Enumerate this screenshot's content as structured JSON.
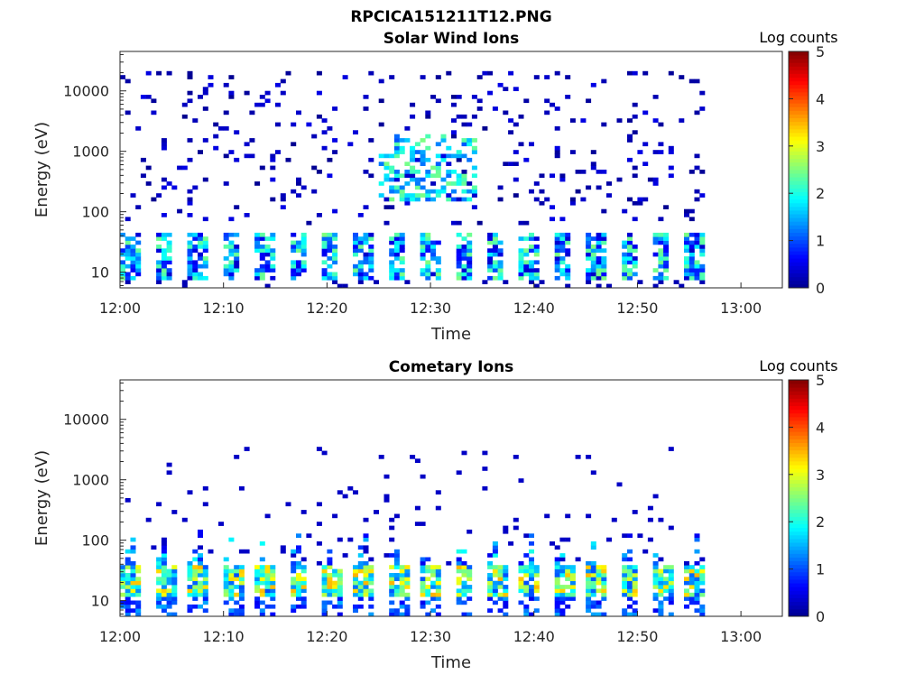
{
  "figure_title": "RPCICA151211T12.PNG",
  "colors": {
    "colormap": [
      "#00008f",
      "#0000ff",
      "#007fff",
      "#00ffff",
      "#7fff7f",
      "#ffff00",
      "#ff7f00",
      "#ff0000",
      "#7f0000"
    ]
  },
  "chart_data": [
    {
      "type": "heatmap",
      "title": "Solar Wind Ions",
      "xlabel": "Time",
      "ylabel": "Energy (eV)",
      "x_ticks": [
        "12:00",
        "12:10",
        "12:20",
        "12:30",
        "12:40",
        "12:50",
        "13:00"
      ],
      "x_range_minutes": [
        0,
        64
      ],
      "data_extent_minutes": [
        0,
        56.5
      ],
      "y_scale": "log",
      "y_ticks": [
        "10",
        "100",
        "1000",
        "10000"
      ],
      "y_range_eV": [
        5.5,
        45000
      ],
      "colorbar": {
        "label": "Log counts",
        "ticks": [
          "0",
          "1",
          "2",
          "3",
          "4",
          "5"
        ],
        "range": [
          0,
          5
        ]
      },
      "features": {
        "low_energy_band_eV": [
          8,
          45
        ],
        "low_energy_band_log_counts": [
          0.3,
          2.5
        ],
        "sparse_background_eV": [
          60,
          20000
        ],
        "sparse_background_log_counts": [
          0,
          0.5
        ],
        "enhancement_time_minutes": [
          25,
          34
        ],
        "enhancement_energy_eV": [
          150,
          2000
        ],
        "enhancement_log_counts": [
          1,
          2.5
        ]
      }
    },
    {
      "type": "heatmap",
      "title": "Cometary Ions",
      "xlabel": "Time",
      "ylabel": "Energy (eV)",
      "x_ticks": [
        "12:00",
        "12:10",
        "12:20",
        "12:30",
        "12:40",
        "12:50",
        "13:00"
      ],
      "x_range_minutes": [
        0,
        64
      ],
      "data_extent_minutes": [
        0,
        56.5
      ],
      "y_scale": "log",
      "y_ticks": [
        "10",
        "100",
        "1000",
        "10000"
      ],
      "y_range_eV": [
        5.5,
        45000
      ],
      "colorbar": {
        "label": "Log counts",
        "ticks": [
          "0",
          "1",
          "2",
          "3",
          "4",
          "5"
        ],
        "range": [
          0,
          5
        ]
      },
      "features": {
        "low_energy_band_eV": [
          12,
          40
        ],
        "low_energy_band_log_counts": [
          1,
          3.5
        ],
        "upward_streaks_eV": [
          40,
          800
        ],
        "upward_streaks_log_counts": [
          0.5,
          2
        ],
        "sparse_background_eV": [
          100,
          4000
        ]
      }
    }
  ]
}
